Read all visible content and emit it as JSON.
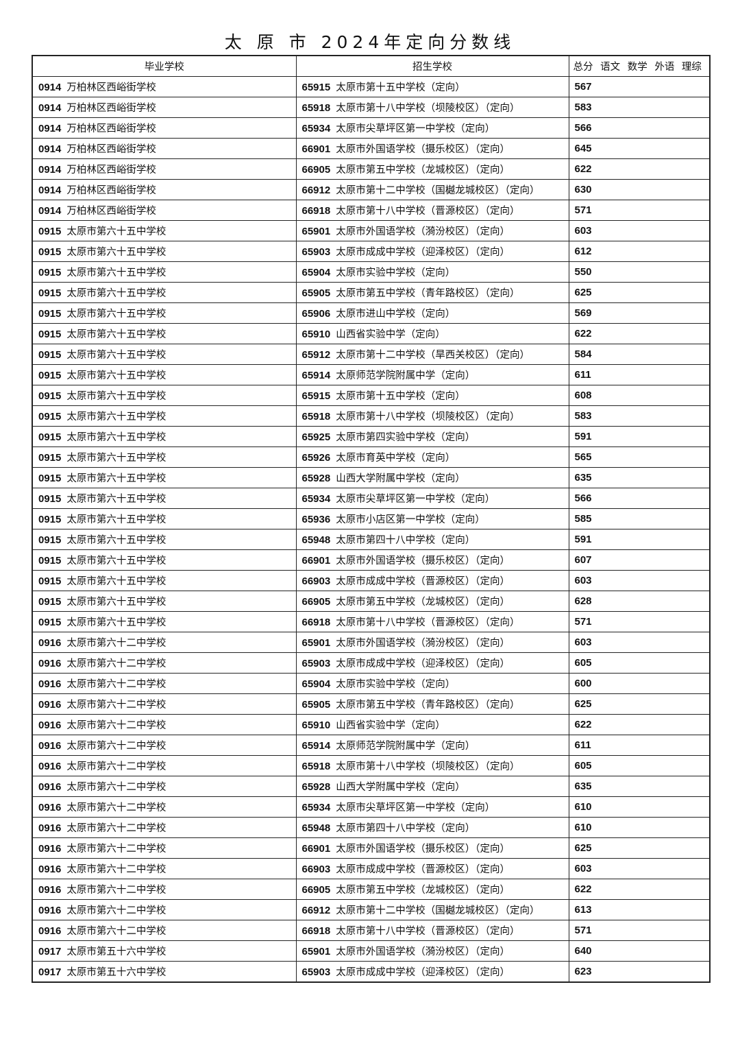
{
  "title": "太 原 市 2024年定向分数线",
  "headers": {
    "grad_school": "毕业学校",
    "enroll_school": "招生学校",
    "scores": "总分 语文 数学 外语 理综"
  },
  "rows": [
    [
      "0914",
      "万柏林区西峪街学校",
      "65915",
      "太原市第十五中学校（定向）",
      "567"
    ],
    [
      "0914",
      "万柏林区西峪街学校",
      "65918",
      "太原市第十八中学校（坝陵校区）（定向）",
      "583"
    ],
    [
      "0914",
      "万柏林区西峪街学校",
      "65934",
      "太原市尖草坪区第一中学校（定向）",
      "566"
    ],
    [
      "0914",
      "万柏林区西峪街学校",
      "66901",
      "太原市外国语学校（摄乐校区）（定向）",
      "645"
    ],
    [
      "0914",
      "万柏林区西峪街学校",
      "66905",
      "太原市第五中学校（龙城校区）（定向）",
      "622"
    ],
    [
      "0914",
      "万柏林区西峪街学校",
      "66912",
      "太原市第十二中学校（国樾龙城校区）（定向）",
      "630"
    ],
    [
      "0914",
      "万柏林区西峪街学校",
      "66918",
      "太原市第十八中学校（晋源校区）（定向）",
      "571"
    ],
    [
      "0915",
      "太原市第六十五中学校",
      "65901",
      "太原市外国语学校（漪汾校区）（定向）",
      "603"
    ],
    [
      "0915",
      "太原市第六十五中学校",
      "65903",
      "太原市成成中学校（迎泽校区）（定向）",
      "612"
    ],
    [
      "0915",
      "太原市第六十五中学校",
      "65904",
      "太原市实验中学校（定向）",
      "550"
    ],
    [
      "0915",
      "太原市第六十五中学校",
      "65905",
      "太原市第五中学校（青年路校区）（定向）",
      "625"
    ],
    [
      "0915",
      "太原市第六十五中学校",
      "65906",
      "太原市进山中学校（定向）",
      "569"
    ],
    [
      "0915",
      "太原市第六十五中学校",
      "65910",
      "山西省实验中学（定向）",
      "622"
    ],
    [
      "0915",
      "太原市第六十五中学校",
      "65912",
      "太原市第十二中学校（旱西关校区）（定向）",
      "584"
    ],
    [
      "0915",
      "太原市第六十五中学校",
      "65914",
      "太原师范学院附属中学（定向）",
      "611"
    ],
    [
      "0915",
      "太原市第六十五中学校",
      "65915",
      "太原市第十五中学校（定向）",
      "608"
    ],
    [
      "0915",
      "太原市第六十五中学校",
      "65918",
      "太原市第十八中学校（坝陵校区）（定向）",
      "583"
    ],
    [
      "0915",
      "太原市第六十五中学校",
      "65925",
      "太原市第四实验中学校（定向）",
      "591"
    ],
    [
      "0915",
      "太原市第六十五中学校",
      "65926",
      "太原市育英中学校（定向）",
      "565"
    ],
    [
      "0915",
      "太原市第六十五中学校",
      "65928",
      "山西大学附属中学校（定向）",
      "635"
    ],
    [
      "0915",
      "太原市第六十五中学校",
      "65934",
      "太原市尖草坪区第一中学校（定向）",
      "566"
    ],
    [
      "0915",
      "太原市第六十五中学校",
      "65936",
      "太原市小店区第一中学校（定向）",
      "585"
    ],
    [
      "0915",
      "太原市第六十五中学校",
      "65948",
      "太原市第四十八中学校（定向）",
      "591"
    ],
    [
      "0915",
      "太原市第六十五中学校",
      "66901",
      "太原市外国语学校（摄乐校区）（定向）",
      "607"
    ],
    [
      "0915",
      "太原市第六十五中学校",
      "66903",
      "太原市成成中学校（晋源校区）（定向）",
      "603"
    ],
    [
      "0915",
      "太原市第六十五中学校",
      "66905",
      "太原市第五中学校（龙城校区）（定向）",
      "628"
    ],
    [
      "0915",
      "太原市第六十五中学校",
      "66918",
      "太原市第十八中学校（晋源校区）（定向）",
      "571"
    ],
    [
      "0916",
      "太原市第六十二中学校",
      "65901",
      "太原市外国语学校（漪汾校区）（定向）",
      "603"
    ],
    [
      "0916",
      "太原市第六十二中学校",
      "65903",
      "太原市成成中学校（迎泽校区）（定向）",
      "605"
    ],
    [
      "0916",
      "太原市第六十二中学校",
      "65904",
      "太原市实验中学校（定向）",
      "600"
    ],
    [
      "0916",
      "太原市第六十二中学校",
      "65905",
      "太原市第五中学校（青年路校区）（定向）",
      "625"
    ],
    [
      "0916",
      "太原市第六十二中学校",
      "65910",
      "山西省实验中学（定向）",
      "622"
    ],
    [
      "0916",
      "太原市第六十二中学校",
      "65914",
      "太原师范学院附属中学（定向）",
      "611"
    ],
    [
      "0916",
      "太原市第六十二中学校",
      "65918",
      "太原市第十八中学校（坝陵校区）（定向）",
      "605"
    ],
    [
      "0916",
      "太原市第六十二中学校",
      "65928",
      "山西大学附属中学校（定向）",
      "635"
    ],
    [
      "0916",
      "太原市第六十二中学校",
      "65934",
      "太原市尖草坪区第一中学校（定向）",
      "610"
    ],
    [
      "0916",
      "太原市第六十二中学校",
      "65948",
      "太原市第四十八中学校（定向）",
      "610"
    ],
    [
      "0916",
      "太原市第六十二中学校",
      "66901",
      "太原市外国语学校（摄乐校区）（定向）",
      "625"
    ],
    [
      "0916",
      "太原市第六十二中学校",
      "66903",
      "太原市成成中学校（晋源校区）（定向）",
      "603"
    ],
    [
      "0916",
      "太原市第六十二中学校",
      "66905",
      "太原市第五中学校（龙城校区）（定向）",
      "622"
    ],
    [
      "0916",
      "太原市第六十二中学校",
      "66912",
      "太原市第十二中学校（国樾龙城校区）（定向）",
      "613"
    ],
    [
      "0916",
      "太原市第六十二中学校",
      "66918",
      "太原市第十八中学校（晋源校区）（定向）",
      "571"
    ],
    [
      "0917",
      "太原市第五十六中学校",
      "65901",
      "太原市外国语学校（漪汾校区）（定向）",
      "640"
    ],
    [
      "0917",
      "太原市第五十六中学校",
      "65903",
      "太原市成成中学校（迎泽校区）（定向）",
      "623"
    ]
  ]
}
